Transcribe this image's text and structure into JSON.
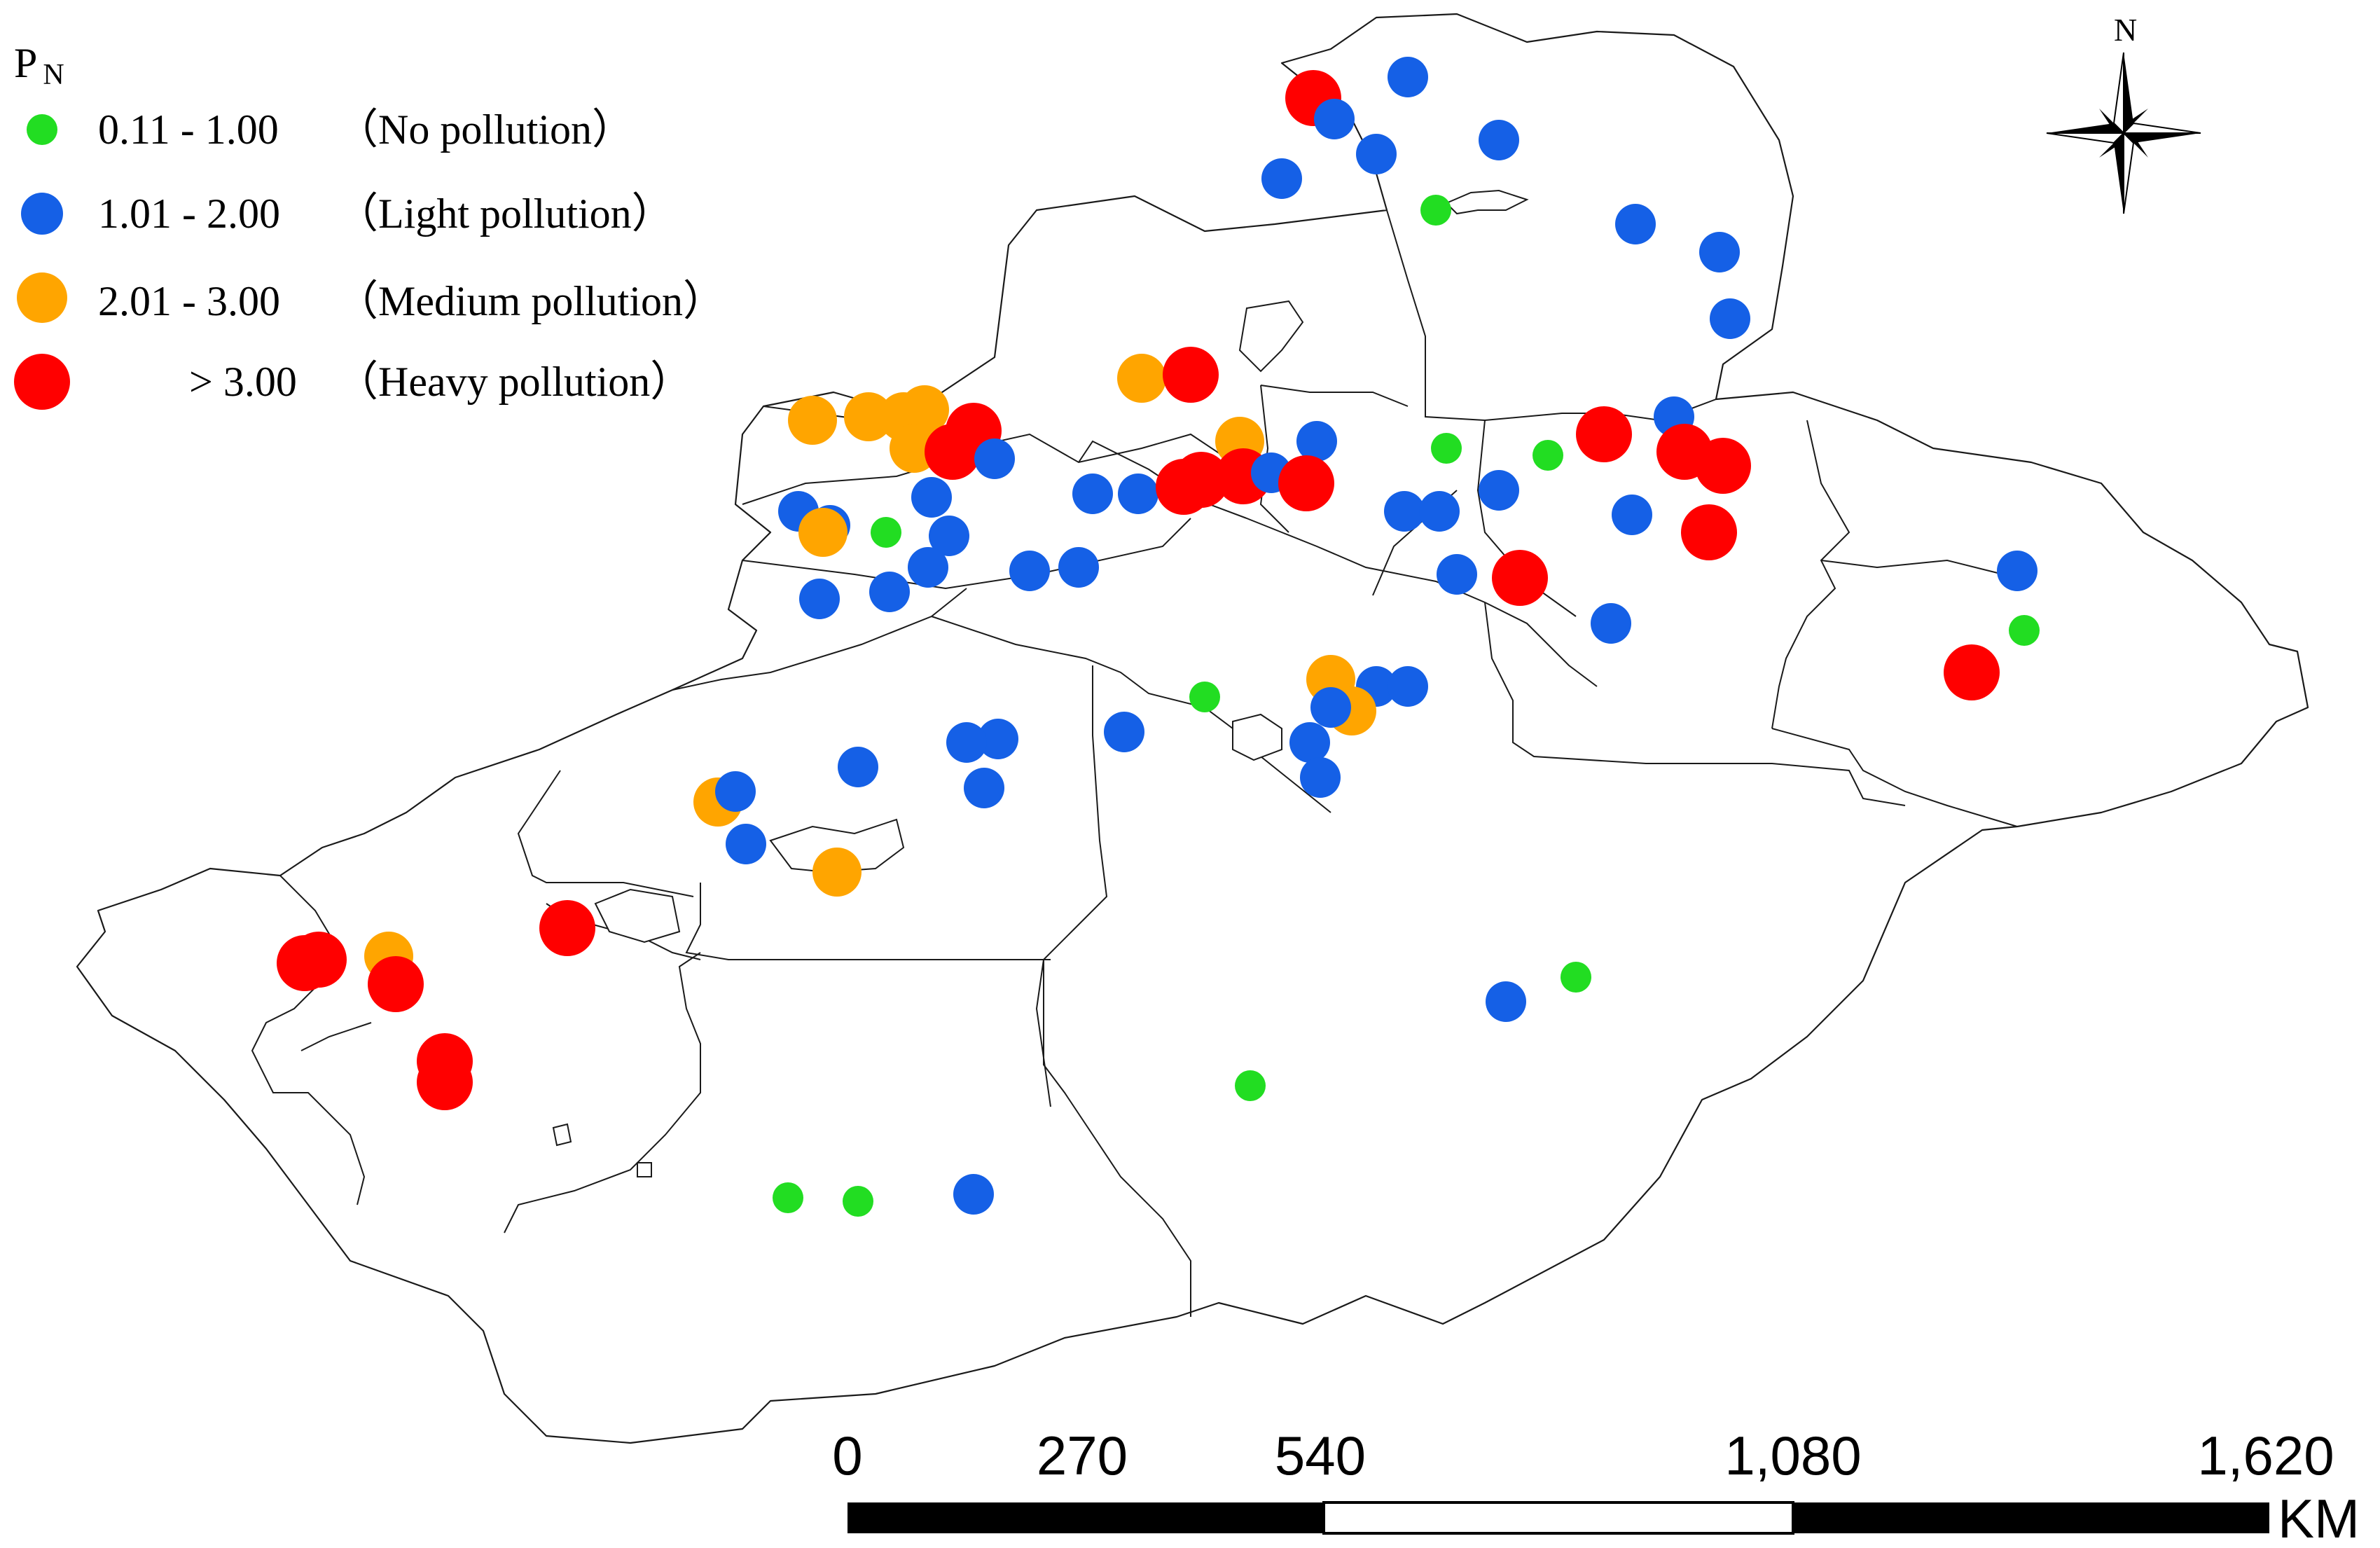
{
  "legend": {
    "title": "P",
    "title_sub": "N",
    "classes": [
      {
        "range": "0.11 - 1.00",
        "label": "（No pollution）",
        "color": "#22dd22",
        "marker": "small"
      },
      {
        "range": "1.01 - 2.00",
        "label": "（Light pollution）",
        "color": "#1560e6",
        "marker": "medium"
      },
      {
        "range": "2.01 - 3.00",
        "label": "（Medium pollution）",
        "color": "#ffa500",
        "marker": "large"
      },
      {
        "range": "> 3.00",
        "label": "（Heavy pollution）",
        "color": "#ff0000",
        "marker": "xlarge"
      }
    ]
  },
  "north_arrow": {
    "label": "N"
  },
  "scale_bar": {
    "ticks": [
      "0",
      "270",
      "540",
      "1,080",
      "1,620"
    ],
    "unit": "KM"
  },
  "colors": {
    "no_pollution": "#22dd22",
    "light_pollution": "#1560e6",
    "medium_pollution": "#ffa500",
    "heavy_pollution": "#ff0000"
  }
}
